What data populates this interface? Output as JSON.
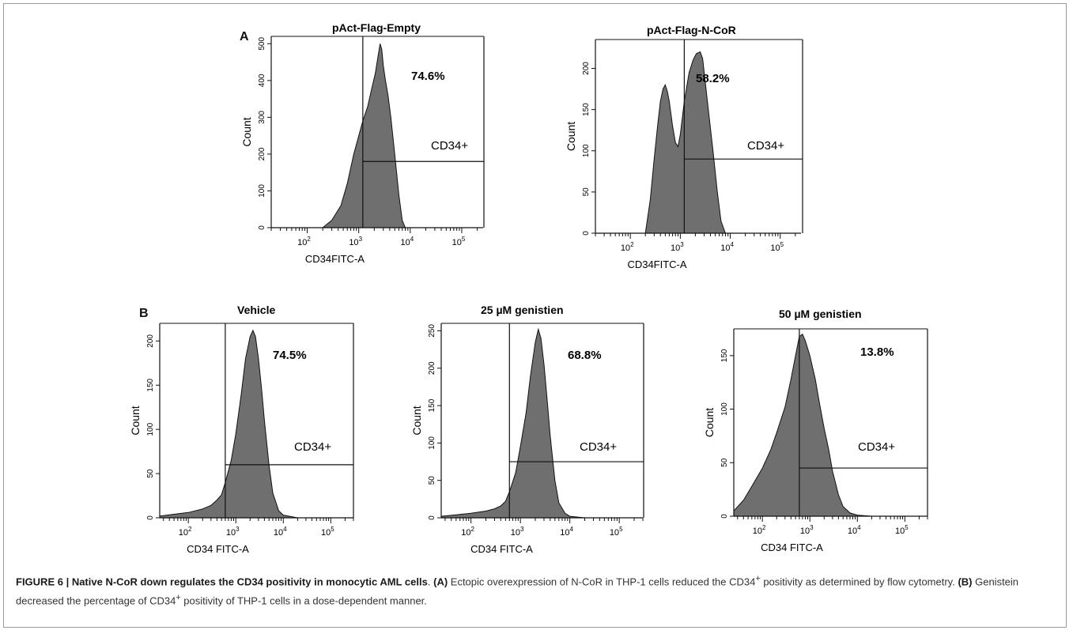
{
  "figure": {
    "panel_labels": {
      "A": "A",
      "B": "B"
    },
    "caption": {
      "head": "FIGURE 6 | Native N-CoR down regulates the CD34 positivity in monocytic AML cells",
      "period": ".",
      "a_label": "(A)",
      "a_text": " Ectopic overexpression of N-CoR in THP-1 cells reduced the CD34",
      "a_sup": "+",
      "a_text2": " positivity as determined by flow cytometry. ",
      "b_label": "(B)",
      "b_text": " Genistein decreased the percentage of CD34",
      "b_sup": "+",
      "b_text2": " positivity of THP-1 cells in a dose-dependent manner."
    }
  },
  "colors": {
    "fill": "#6f6f6f",
    "line": "#111111",
    "frame": "#9a9a9a"
  },
  "chart_data": [
    {
      "type": "area",
      "panel": "A",
      "title": "pAct-Flag-Empty",
      "percent": "74.6%",
      "gate_label": "CD34+",
      "xlabel": "CD34FITC-A",
      "ylabel": "Count",
      "x_log": true,
      "xlim": [
        20,
        260000
      ],
      "ylim": [
        0,
        520
      ],
      "x_ticks": [
        "10^2",
        "10^3",
        "10^4",
        "10^5"
      ],
      "y_ticks": [
        0,
        100,
        200,
        300,
        400,
        500
      ],
      "gate_x": 1200,
      "gate_level": 180,
      "x": [
        200,
        300,
        450,
        600,
        800,
        1000,
        1200,
        1500,
        1800,
        2100,
        2400,
        2600,
        2800,
        3000,
        3300,
        3700,
        4200,
        5000,
        6000,
        7000,
        8000
      ],
      "y": [
        0,
        20,
        60,
        120,
        200,
        250,
        290,
        330,
        380,
        420,
        470,
        500,
        485,
        440,
        400,
        360,
        300,
        200,
        90,
        20,
        0
      ]
    },
    {
      "type": "area",
      "panel": "A",
      "title": "pAct-Flag-N-CoR",
      "percent": "58.2%",
      "gate_label": "CD34+",
      "xlabel": "CD34FITC-A",
      "ylabel": "Count",
      "x_log": true,
      "xlim": [
        20,
        260000
      ],
      "ylim": [
        0,
        235
      ],
      "x_ticks": [
        "10^2",
        "10^3",
        "10^4",
        "10^5"
      ],
      "y_ticks": [
        0,
        50,
        100,
        150,
        200
      ],
      "gate_x": 1200,
      "gate_level": 90,
      "x": [
        200,
        250,
        300,
        350,
        400,
        450,
        500,
        550,
        600,
        700,
        800,
        900,
        1000,
        1200,
        1500,
        1800,
        2100,
        2500,
        2800,
        3200,
        3800,
        4500,
        5500,
        6500,
        8000
      ],
      "y": [
        0,
        40,
        90,
        130,
        160,
        175,
        180,
        172,
        160,
        130,
        110,
        105,
        120,
        160,
        195,
        210,
        218,
        220,
        212,
        180,
        140,
        100,
        50,
        15,
        0
      ]
    },
    {
      "type": "area",
      "panel": "B",
      "title": "Vehicle",
      "percent": "74.5%",
      "gate_label": "CD34+",
      "xlabel": "CD34 FITC-A",
      "ylabel": "Count",
      "x_log": true,
      "xlim": [
        25,
        300000
      ],
      "ylim": [
        0,
        220
      ],
      "x_ticks": [
        "10^2",
        "10^3",
        "10^4",
        "10^5"
      ],
      "y_ticks": [
        0,
        50,
        100,
        150,
        200
      ],
      "gate_x": 600,
      "gate_level": 60,
      "x": [
        25,
        50,
        100,
        200,
        300,
        400,
        500,
        600,
        800,
        1000,
        1300,
        1600,
        2000,
        2300,
        2600,
        3000,
        3500,
        4000,
        5000,
        6000,
        8000,
        10000,
        20000
      ],
      "y": [
        2,
        4,
        6,
        10,
        14,
        20,
        26,
        40,
        65,
        95,
        140,
        180,
        205,
        212,
        205,
        180,
        145,
        110,
        60,
        28,
        8,
        3,
        0
      ]
    },
    {
      "type": "area",
      "panel": "B",
      "title": "25 µM genistien",
      "percent": "68.8%",
      "gate_label": "CD34+",
      "xlabel": "CD34 FITC-A",
      "ylabel": "Count",
      "x_log": true,
      "xlim": [
        25,
        300000
      ],
      "ylim": [
        0,
        260
      ],
      "x_ticks": [
        "10^2",
        "10^3",
        "10^4",
        "10^5"
      ],
      "y_ticks": [
        0,
        50,
        100,
        150,
        200,
        250
      ],
      "gate_x": 600,
      "gate_level": 75,
      "x": [
        25,
        50,
        100,
        200,
        300,
        400,
        500,
        600,
        800,
        1000,
        1300,
        1600,
        2000,
        2300,
        2600,
        3000,
        3500,
        4000,
        5000,
        6000,
        8000,
        10000,
        20000
      ],
      "y": [
        2,
        4,
        6,
        9,
        12,
        16,
        22,
        35,
        60,
        95,
        140,
        190,
        235,
        252,
        240,
        205,
        155,
        110,
        50,
        20,
        6,
        2,
        0
      ]
    },
    {
      "type": "area",
      "panel": "B",
      "title": "50 µM genistien",
      "percent": "13.8%",
      "gate_label": "CD34+",
      "xlabel": "CD34 FITC-A",
      "ylabel": "Count",
      "x_log": true,
      "xlim": [
        25,
        300000
      ],
      "ylim": [
        0,
        175
      ],
      "x_ticks": [
        "10^2",
        "10^3",
        "10^4",
        "10^5"
      ],
      "y_ticks": [
        0,
        50,
        100,
        150
      ],
      "gate_x": 600,
      "gate_level": 45,
      "x": [
        25,
        40,
        60,
        100,
        150,
        200,
        300,
        400,
        500,
        600,
        700,
        800,
        1000,
        1300,
        1600,
        2000,
        2500,
        3000,
        4000,
        5000,
        7000,
        10000,
        20000
      ],
      "y": [
        5,
        15,
        28,
        45,
        62,
        78,
        102,
        128,
        150,
        168,
        170,
        164,
        150,
        128,
        105,
        82,
        62,
        42,
        20,
        9,
        3,
        1,
        0
      ]
    }
  ]
}
